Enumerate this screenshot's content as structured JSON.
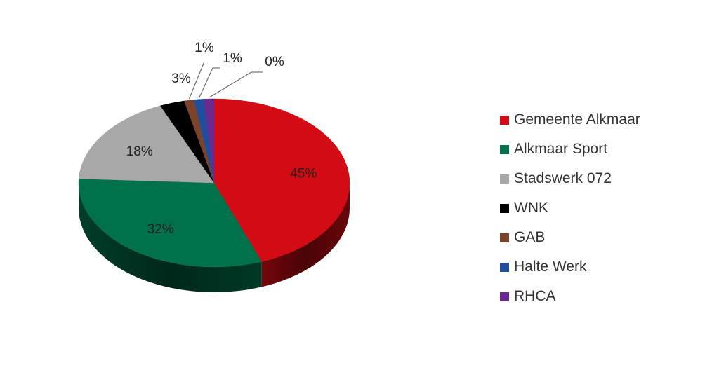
{
  "chart_data": {
    "type": "pie",
    "variant": "3d",
    "title": "",
    "legend_position": "right",
    "series": [
      {
        "name": "Gemeente Alkmaar",
        "value": 45,
        "label": "45%",
        "color": "#d20b14"
      },
      {
        "name": "Alkmaar Sport",
        "value": 32,
        "label": "32%",
        "color": "#00714a"
      },
      {
        "name": "Stadswerk 072",
        "value": 18,
        "label": "18%",
        "color": "#a8a8a8"
      },
      {
        "name": "WNK",
        "value": 3,
        "label": "3%",
        "color": "#000000"
      },
      {
        "name": "GAB",
        "value": 1,
        "label": "1%",
        "color": "#7b4329"
      },
      {
        "name": "Halte Werk",
        "value": 1,
        "label": "1%",
        "color": "#1f4e9e"
      },
      {
        "name": "RHCA",
        "value": 0,
        "label": "0%",
        "color": "#6a2a8f"
      }
    ]
  }
}
